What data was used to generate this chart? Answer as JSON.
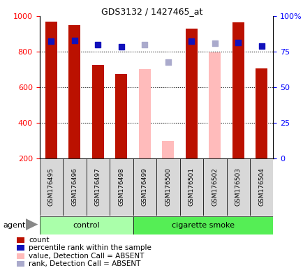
{
  "title": "GDS3132 / 1427465_at",
  "samples": [
    "GSM176495",
    "GSM176496",
    "GSM176497",
    "GSM176498",
    "GSM176499",
    "GSM176500",
    "GSM176501",
    "GSM176502",
    "GSM176503",
    "GSM176504"
  ],
  "count_values": [
    970,
    950,
    725,
    675,
    null,
    null,
    930,
    null,
    963,
    706
  ],
  "absent_value_values": [
    null,
    null,
    null,
    null,
    700,
    295,
    null,
    795,
    null,
    null
  ],
  "percentile_rank_left": [
    860,
    862,
    840,
    827,
    null,
    null,
    860,
    null,
    852,
    830
  ],
  "absent_rank_left": [
    null,
    null,
    null,
    null,
    840,
    740,
    null,
    847,
    null,
    null
  ],
  "ylim_left": [
    200,
    1000
  ],
  "ylim_right": [
    0,
    100
  ],
  "yticks_left": [
    200,
    400,
    600,
    800,
    1000
  ],
  "ytick_labels_left": [
    "200",
    "400",
    "600",
    "800",
    "1000"
  ],
  "yticks_right": [
    0,
    25,
    50,
    75,
    100
  ],
  "ytick_labels_right": [
    "0",
    "25",
    "50",
    "75",
    "100%"
  ],
  "grid_lines": [
    400,
    600,
    800
  ],
  "bar_width": 0.5,
  "count_color": "#bb1100",
  "absent_value_color": "#ffbbbb",
  "rank_color": "#1111bb",
  "absent_rank_color": "#aaaacc",
  "control_bg": "#aaffaa",
  "smoke_bg": "#55ee55",
  "agent_label": "agent",
  "control_label": "control",
  "smoke_label": "cigarette smoke",
  "n_control": 4,
  "n_smoke": 6,
  "legend_items": [
    "count",
    "percentile rank within the sample",
    "value, Detection Call = ABSENT",
    "rank, Detection Call = ABSENT"
  ],
  "legend_colors": [
    "#bb1100",
    "#1111bb",
    "#ffbbbb",
    "#aaaacc"
  ],
  "legend_marker_shapes": [
    "s",
    "s",
    "s",
    "s"
  ]
}
